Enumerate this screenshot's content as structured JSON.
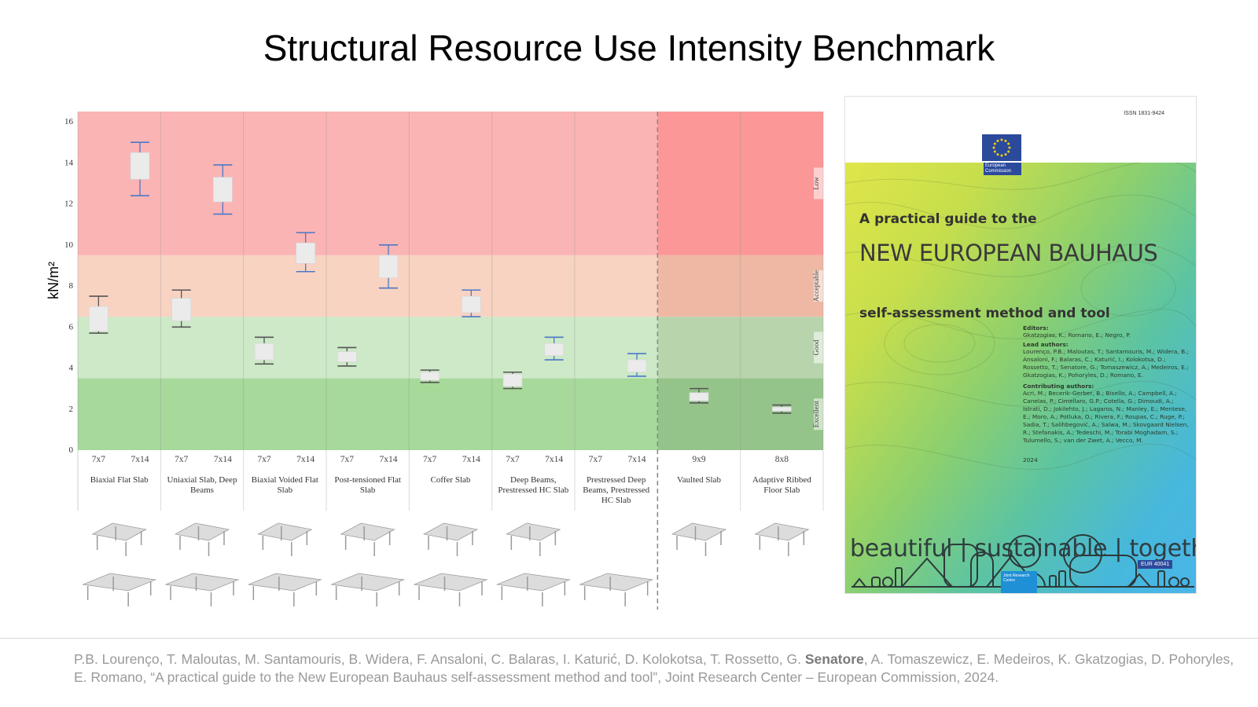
{
  "page": {
    "title": "Structural Resource Use Intensity Benchmark"
  },
  "chart_data": {
    "type": "box",
    "title": "",
    "ylabel": "kN/m²",
    "ylim": [
      0,
      16.5
    ],
    "yticks": [
      0,
      2,
      4,
      6,
      8,
      10,
      12,
      14,
      16
    ],
    "grid": false,
    "bands": [
      {
        "name": "Excellent",
        "from": 0,
        "to": 3.5,
        "color": "#a6d99a",
        "color_right": "#95c48a"
      },
      {
        "name": "Good",
        "from": 3.5,
        "to": 6.5,
        "color": "#cde9c7",
        "color_right": "#b7d4ad"
      },
      {
        "name": "Acceptable",
        "from": 6.5,
        "to": 9.5,
        "color": "#f8d3c2",
        "color_right": "#efb8a4"
      },
      {
        "name": "Low",
        "from": 9.5,
        "to": 16.5,
        "color": "#fbb4b4",
        "color_right": "#fb9797"
      }
    ],
    "groups": [
      {
        "name": "Biaxial Flat Slab",
        "spans": [
          {
            "span": "7x7",
            "min": 5.7,
            "q1": 5.8,
            "q3": 7.0,
            "max": 7.5,
            "color": "#555555"
          },
          {
            "span": "7x14",
            "min": 12.4,
            "q1": 13.2,
            "q3": 14.5,
            "max": 15.0,
            "color": "#4a78c8"
          }
        ]
      },
      {
        "name": "Uniaxial Slab, Deep Beams",
        "spans": [
          {
            "span": "7x7",
            "min": 6.0,
            "q1": 6.3,
            "q3": 7.4,
            "max": 7.8,
            "color": "#555555"
          },
          {
            "span": "7x14",
            "min": 11.5,
            "q1": 12.1,
            "q3": 13.3,
            "max": 13.9,
            "color": "#4a78c8"
          }
        ]
      },
      {
        "name": "Biaxial Voided Flat Slab",
        "spans": [
          {
            "span": "7x7",
            "min": 4.2,
            "q1": 4.4,
            "q3": 5.2,
            "max": 5.5,
            "color": "#555555"
          },
          {
            "span": "7x14",
            "min": 8.7,
            "q1": 9.1,
            "q3": 10.1,
            "max": 10.6,
            "color": "#4a78c8"
          }
        ]
      },
      {
        "name": "Post-tensioned Flat Slab",
        "spans": [
          {
            "span": "7x7",
            "min": 4.1,
            "q1": 4.3,
            "q3": 4.8,
            "max": 5.0,
            "color": "#555555"
          },
          {
            "span": "7x14",
            "min": 7.9,
            "q1": 8.4,
            "q3": 9.5,
            "max": 10.0,
            "color": "#4a78c8"
          }
        ]
      },
      {
        "name": "Coffer Slab",
        "spans": [
          {
            "span": "7x7",
            "min": 3.3,
            "q1": 3.4,
            "q3": 3.8,
            "max": 3.9,
            "color": "#555555"
          },
          {
            "span": "7x14",
            "min": 6.5,
            "q1": 6.7,
            "q3": 7.5,
            "max": 7.8,
            "color": "#4a78c8"
          }
        ]
      },
      {
        "name": "Deep Beams, Prestressed HC Slab",
        "spans": [
          {
            "span": "7x7",
            "min": 3.0,
            "q1": 3.1,
            "q3": 3.7,
            "max": 3.8,
            "color": "#555555"
          },
          {
            "span": "7x14",
            "min": 4.4,
            "q1": 4.6,
            "q3": 5.2,
            "max": 5.5,
            "color": "#4a78c8"
          }
        ]
      },
      {
        "name": "Prestressed Deep Beams, Prestressed HC Slab",
        "spans": [
          {
            "span": "7x7",
            "min": null,
            "q1": null,
            "q3": null,
            "max": null,
            "color": "#555555"
          },
          {
            "span": "7x14",
            "min": 3.6,
            "q1": 3.8,
            "q3": 4.4,
            "max": 4.7,
            "color": "#4a78c8"
          }
        ]
      },
      {
        "name": "Vaulted Slab",
        "spans": [
          {
            "span": "9x9",
            "min": 2.3,
            "q1": 2.4,
            "q3": 2.8,
            "max": 3.0,
            "color": "#555555"
          }
        ]
      },
      {
        "name": "Adaptive Ribbed Floor Slab",
        "spans": [
          {
            "span": "8x8",
            "min": 1.8,
            "q1": 1.9,
            "q3": 2.1,
            "max": 2.2,
            "color": "#555555"
          }
        ]
      }
    ]
  },
  "cover": {
    "issn": "ISSN 1831-9424",
    "ec_label": "European Commission",
    "heading1": "A practical guide to the",
    "heading2": "NEW EUROPEAN BAUHAUS",
    "heading3": "self-assessment method and tool",
    "editors_label": "Editors:",
    "editors": "Gkatzogias, K.; Romano, E.; Negro, P.",
    "lead_label": "Lead authors:",
    "lead": "Lourenço, P.B.; Maloutas, T.; Santamouris, M.; Widera, B.; Ansaloni, F.; Balaras, C.; Katurić, I.; Kolokotsa, D.; Rossetto, T.; Senatore, G.; Tomaszewicz, A.; Medeiros, E.; Gkatzogias, K.; Pohoryles, D.; Romano, E.",
    "contrib_label": "Contributing authors:",
    "contrib": "Acri, M.; Becerik-Gerber, B.; Bisello, A.; Campbell, A.; Canelas, P.; Cimellaro, G.P.; Cotella, G.; Dimoudi, A.; Istrati, D.; Jokilehto, J.; Lagaros, N.; Manley, E.; Mentese, E.; Moro, A.; Potluka, O.; Rivera, F.; Roupas, C.; Ruge, P.; Sadia, T.; Salihbegović, A.; Salwa, M.; Skovgaard Nielsen, R.; Stefanakis, A.; Tedeschi, M.; Torabi Moghadam, S.; Tulumello, S.; van der Zwet, A.; Vecco, M.",
    "year": "2024",
    "tagline": "beautiful | sustainable | together",
    "jrc": "Joint Research Centre",
    "eur": "EUR 40041"
  },
  "citation": {
    "before": "P.B. Lourenço, T. Maloutas, M. Santamouris, B. Widera, F. Ansaloni, C.  Balaras, I. Katurić, D. Kolokotsa, T. Rossetto,  G. ",
    "bold": "Senatore",
    "after": ", A. Tomaszewicz, E. Medeiros, K. Gkatzogias, D. Pohoryles, E. Romano, “A practical guide to the New European Bauhaus self-assessment method and tool”, Joint Research Center – European Commission, 2024."
  }
}
